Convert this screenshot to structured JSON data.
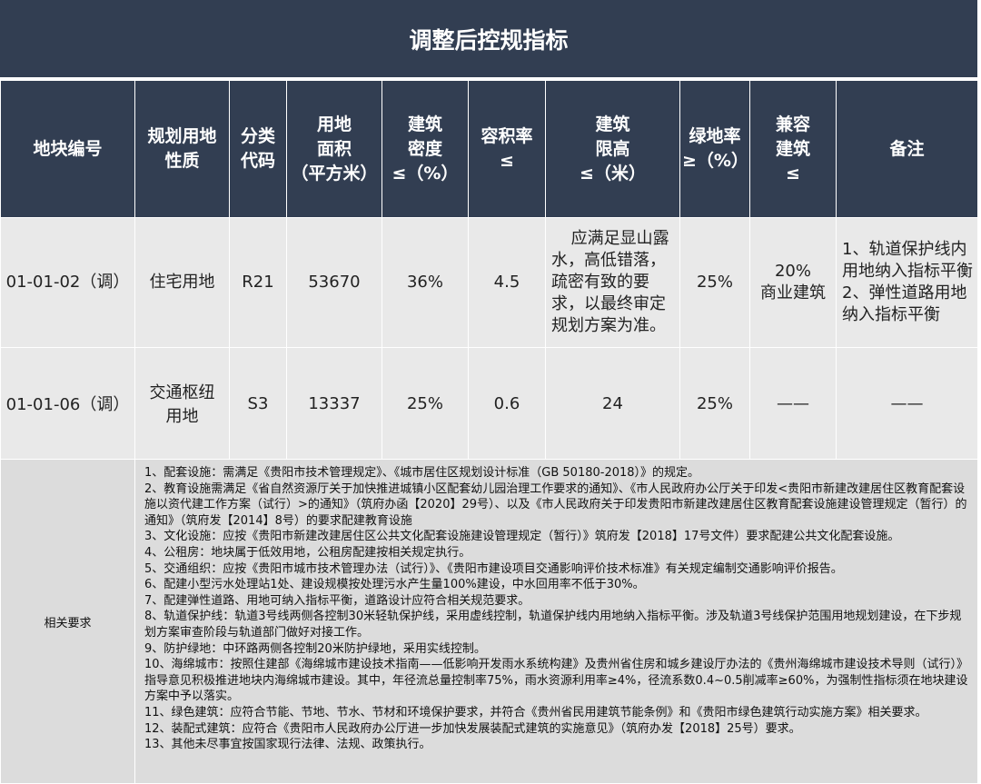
{
  "title": "调整后控规指标",
  "headers": [
    "地块编号",
    "规划用地\n性质",
    "分类\n代码",
    "用地\n面积\n（平方米）",
    "建筑\n密度\n≤（%）",
    "容积率\n≤",
    "建筑\n限高\n≤（米）",
    "绿地率\n≥（%）",
    "兼容\n建筑\n≤",
    "备注"
  ],
  "rows": [
    [
      "01-01-02（调）",
      "住宅用地",
      "R21",
      "53670",
      "36%",
      "4.5",
      "应满足显山露水，高低错落，疏密有致的要求，以最终审定规划方案为准。",
      "25%",
      "20%\n商业建筑",
      "1、轨道保护线内用地纳入指标平衡\n2、弹性道路用地纳入指标平衡"
    ],
    [
      "01-01-06（调）",
      "交通枢纽\n用地",
      "S3",
      "13337",
      "25%",
      "0.6",
      "24",
      "25%",
      "——",
      "——"
    ]
  ],
  "requirements": {
    "label": "相关要求",
    "items": [
      "1、配套设施：需满足《贵阳市技术管理规定》、《城市居住区规划设计标准（GB 50180-2018）》的规定。",
      "2、教育设施需满足《省自然资源厅关于加快推进城镇小区配套幼儿园治理工作要求的通知》、《市人民政府办公厅关于印发<贵阳市新建改建居住区教育配套设施以资代建工作方案（试行）>的通知》（筑府办函【2020】29号）、以及《市人民政府关于印发贵阳市新建改建居住区教育配套设施建设管理规定（暂行）的通知》（筑府发【2014】8号）的要求配建教育设施",
      "3、文化设施：应按《贵阳市新建改建居住区公共文化配套设施建设管理规定（暂行）》筑府发【2018】17号文件）要求配建公共文化配套设施。",
      "4、公租房：地块属于低效用地，公租房配建按相关规定执行。",
      "5、交通组织：应按《贵阳市城市技术管理办法（试行）》、《贵阳市建设项目交通影响评价技术标准》有关规定编制交通影响评价报告。",
      "6、配建小型污水处理站1处、建设规模按处理污水产生量100%建设，中水回用率不低于30%。",
      "7、配建弹性道路、用地可纳入指标平衡，道路设计应符合相关规范要求。",
      "8、轨道保护线：轨道3号线两侧各控制30米轻轨保护线，采用虚线控制，轨道保护线内用地纳入指标平衡。涉及轨道3号线保护范围用地规划建设，在下步规划方案审查阶段与轨道部门做好对接工作。",
      "9、防护绿地：中环路两侧各控制20米防护绿地，采用实线控制。",
      "10、海绵城市：按照住建部《海绵城市建设技术指南——低影响开发雨水系统构建》及贵州省住房和城乡建设厅办法的《贵州海绵城市建设技术导则（试行）》指导意见积极推进地块内海绵城市建设。其中，年径流总量控制率75%，雨水资源利用率≥4%，径流系数0.4~0.5削减率≥60%，为强制性指标须在地块建设方案中予以落实。",
      "11、绿色建筑：应符合节能、节地、节水、节材和环境保护要求，并符合《贵州省民用建筑节能条例》和《贵阳市绿色建筑行动实施方案》相关要求。",
      "12、装配式建筑：应符合《贵阳市人民政府办公厅进一步加快发展装配式建筑的实施意见》（筑府办发【2018】25号）要求。",
      "13、其他未尽事宜按国家现行法律、法规、政策执行。"
    ]
  },
  "colors": {
    "header_bg": "#323e52",
    "row_bg": "#e9e9e9",
    "req_bg": "#dcdcdc"
  }
}
